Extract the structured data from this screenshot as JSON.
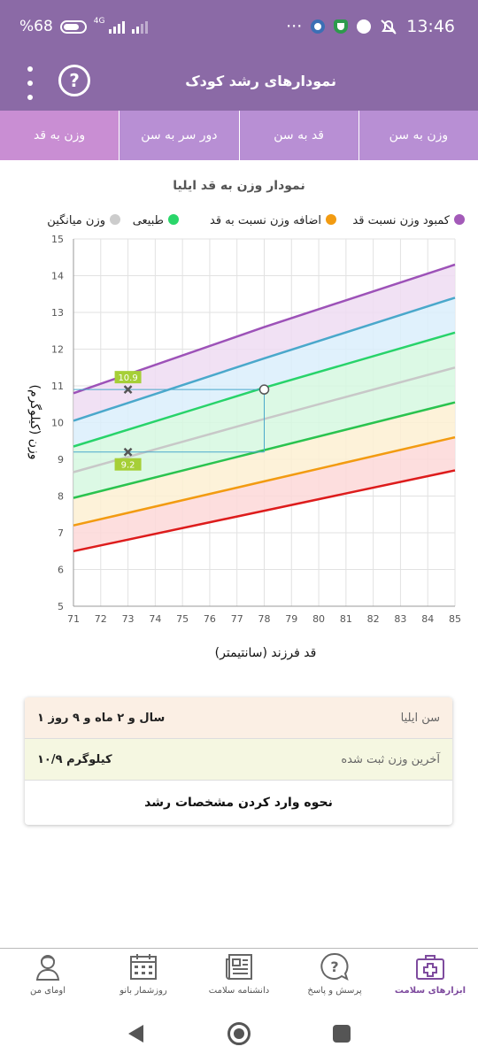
{
  "status": {
    "battery": "%68",
    "net": "4G",
    "time": "13:46",
    "dots": "···"
  },
  "app_bar": {
    "title": "نمودارهای رشد کودک",
    "help": "?"
  },
  "tabs": [
    {
      "label": "وزن به سن",
      "active": false
    },
    {
      "label": "قد به سن",
      "active": false
    },
    {
      "label": "دور سر به سن",
      "active": false
    },
    {
      "label": "وزن به قد",
      "active": true
    }
  ],
  "chart_data": {
    "type": "line",
    "title": "نمودار وزن به قد ایلیا",
    "xlabel": "قد فرزند (سانتیمتر)",
    "ylabel": "وزن (کیلوگرم)",
    "xlim": [
      71,
      85
    ],
    "ylim": [
      5,
      15
    ],
    "x_ticks": [
      "71",
      "72",
      "73",
      "74",
      "75",
      "76",
      "77",
      "78",
      "79",
      "80",
      "81",
      "82",
      "83",
      "84",
      "85"
    ],
    "y_ticks": [
      "5",
      "6",
      "7",
      "8",
      "9",
      "10",
      "11",
      "12",
      "13",
      "14",
      "15"
    ],
    "grid": true,
    "legend_position": "top",
    "legend": [
      {
        "name": "کمبود وزن نسبت قد",
        "color": "#a35ab8"
      },
      {
        "name": "اضافه وزن نسبت به قد",
        "color": "#f29b11"
      },
      {
        "name": "طبیعی",
        "color": "#2ad66a"
      },
      {
        "name": "وزن میانگین",
        "color": "#cccccc"
      }
    ],
    "x": [
      71,
      78,
      85
    ],
    "series": [
      {
        "color": "#9d52b8",
        "values": [
          10.8,
          12.6,
          14.3
        ]
      },
      {
        "color": "#4aa8cb",
        "values": [
          10.05,
          11.75,
          13.4
        ]
      },
      {
        "color": "#28d36a",
        "values": [
          9.35,
          10.95,
          12.45
        ]
      },
      {
        "color": "#c8c8c8",
        "values": [
          8.65,
          10.1,
          11.5
        ]
      },
      {
        "color": "#2ac34f",
        "values": [
          7.95,
          9.25,
          10.55
        ]
      },
      {
        "color": "#f29b11",
        "values": [
          7.2,
          8.4,
          9.6
        ]
      },
      {
        "color": "#dd1c1c",
        "values": [
          6.5,
          7.6,
          8.7
        ]
      }
    ],
    "bands": [
      {
        "fill": "#efdcf2"
      },
      {
        "fill": "#dbeffb"
      },
      {
        "fill": "#d6f8e1"
      },
      {
        "fill": "#d6f8e1"
      },
      {
        "fill": "#fdf0d2"
      },
      {
        "fill": "#fdd8d8"
      }
    ],
    "points": [
      {
        "x": 73,
        "y": 10.9,
        "label": "10.9"
      },
      {
        "x": 73,
        "y": 9.2,
        "label": "9.2"
      }
    ],
    "current": {
      "x": 78,
      "y": 10.9
    }
  },
  "info": {
    "age_label": "سن ایلیا",
    "age_value": "۱ سال و ۲ ماه و ۹ روز",
    "weight_label": "آخرین وزن ثبت شده",
    "weight_value": "۱۰/۹ کیلوگرم",
    "howto": "نحوه وارد کردن مشخصات رشد"
  },
  "bottom_nav": [
    {
      "label": "اومای من",
      "icon": "profile-icon",
      "active": false
    },
    {
      "label": "روزشمار بانو",
      "icon": "calendar-icon",
      "active": false
    },
    {
      "label": "دانشنامه سلامت",
      "icon": "newspaper-icon",
      "active": false
    },
    {
      "label": "پرسش و پاسخ",
      "icon": "question-icon",
      "active": false
    },
    {
      "label": "ابزارهای سلامت",
      "icon": "medical-kit-icon",
      "active": true
    }
  ]
}
